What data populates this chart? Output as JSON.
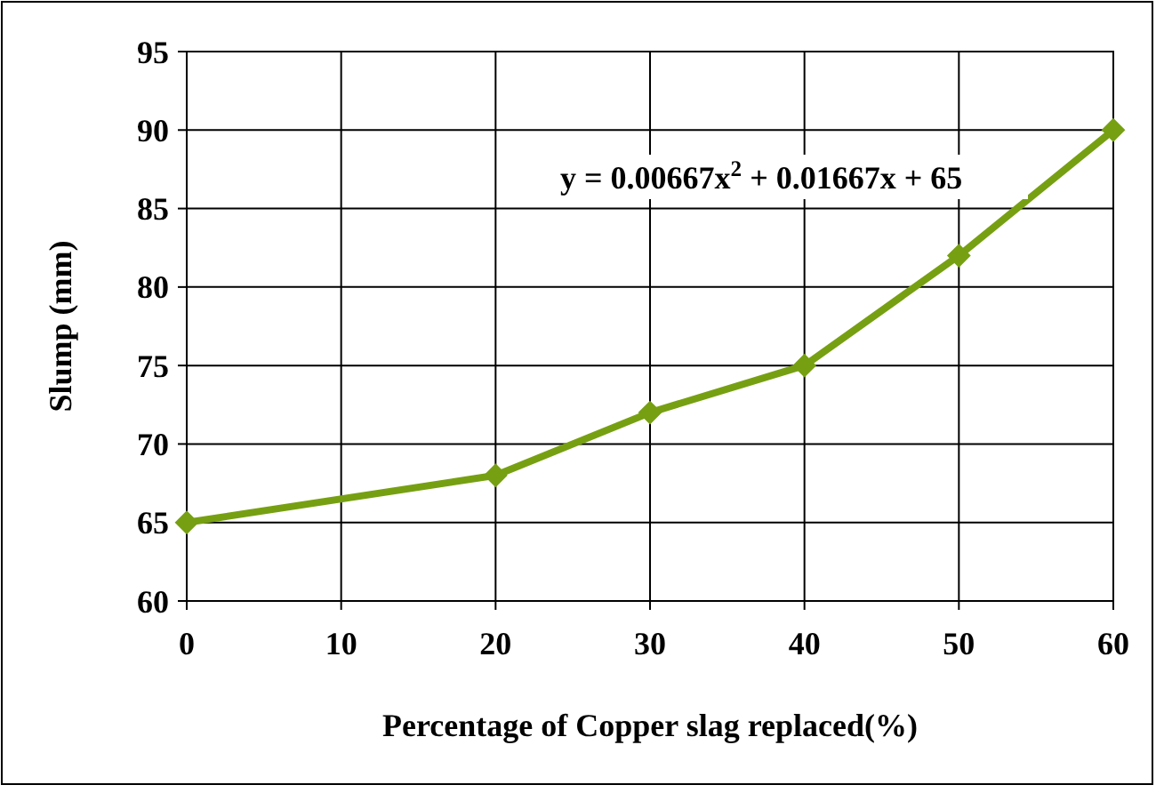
{
  "chart_data": {
    "type": "line",
    "xlabel": "Percentage  of Copper slag replaced(%)",
    "ylabel": "Slump  (mm)",
    "x": [
      0,
      20,
      30,
      40,
      50,
      60
    ],
    "series": [
      {
        "color": "#76a012",
        "values": [
          65,
          68,
          72,
          75,
          82,
          90
        ]
      }
    ],
    "xlim": [
      0,
      60
    ],
    "xticks": [
      0,
      10,
      20,
      30,
      40,
      50,
      60
    ],
    "ylim": [
      60,
      95
    ],
    "yticks": [
      60,
      65,
      70,
      75,
      80,
      85,
      90,
      95
    ],
    "grid": true,
    "marker": "diamond",
    "line_style": "solid",
    "annotations": [
      "y = 0.00667x$^{2}$ + 0.01667x + 65"
    ]
  }
}
